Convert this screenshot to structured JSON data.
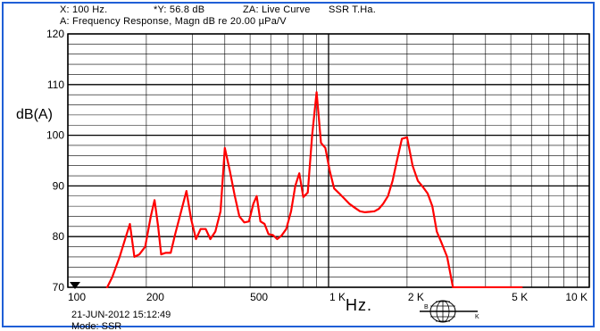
{
  "header": {
    "line1_x": "X: 100 Hz.",
    "line1_y": "*Y: 56.8 dB",
    "line1_za": "ZA: Live Curve",
    "line1_src": "SSR T.Ha.",
    "line2": "A: Frequency Response, Magn dB re 20.00  µPa/V"
  },
  "footer": {
    "date": "21-JUN-2012 15:12:49",
    "mode": "Mode: SSR"
  },
  "logo": {
    "left_letter": "B",
    "right_letter": "K"
  },
  "colors": {
    "frame": "#1f5fd6",
    "curve": "#ff0000",
    "grid": "#000000"
  },
  "chart_data": {
    "type": "line",
    "xscale": "log",
    "xlim": [
      100,
      10000
    ],
    "ylim": [
      70,
      120
    ],
    "xlabel": "Hz.",
    "ylabel": "dB(A)",
    "grid": true,
    "x_ticks": [
      {
        "value": 100,
        "label": "100"
      },
      {
        "value": 200,
        "label": "200"
      },
      {
        "value": 500,
        "label": "500"
      },
      {
        "value": 1000,
        "label": "1 K"
      },
      {
        "value": 2000,
        "label": "2 K"
      },
      {
        "value": 5000,
        "label": "5 K"
      },
      {
        "value": 10000,
        "label": "10 K"
      }
    ],
    "y_ticks": [
      {
        "value": 70,
        "label": "70"
      },
      {
        "value": 80,
        "label": "80"
      },
      {
        "value": 90,
        "label": "90"
      },
      {
        "value": 100,
        "label": "100"
      },
      {
        "value": 110,
        "label": "110"
      },
      {
        "value": 120,
        "label": "120"
      }
    ],
    "series": [
      {
        "color": "#ff0000",
        "x": [
          140,
          148,
          158,
          167,
          173,
          180,
          188,
          198,
          208,
          215,
          222,
          228,
          237,
          248,
          258,
          272,
          285,
          297,
          310,
          323,
          338,
          352,
          368,
          385,
          400,
          418,
          437,
          455,
          475,
          495,
          515,
          530,
          548,
          568,
          588,
          612,
          635,
          660,
          688,
          718,
          745,
          772,
          800,
          832,
          865,
          900,
          935,
          972,
          1010,
          1050,
          1100,
          1150,
          1200,
          1260,
          1320,
          1380,
          1440,
          1500,
          1560,
          1620,
          1690,
          1760,
          1830,
          1910,
          2000,
          2100,
          2200,
          2300,
          2400,
          2500,
          2600,
          2700,
          2850,
          3000,
          3150,
          3300,
          3500,
          3680,
          3860,
          4060,
          4260,
          4460,
          4680,
          4900,
          5100,
          5300,
          5550
        ],
        "y": [
          69.5,
          72,
          76,
          80,
          82.5,
          76,
          76.5,
          78,
          84,
          87.2,
          82,
          76.5,
          76.8,
          76.8,
          80.5,
          85,
          89,
          83.5,
          79.5,
          81.5,
          81.5,
          79.5,
          81,
          85,
          97.5,
          93,
          88,
          84,
          82.8,
          83,
          86.5,
          88,
          83,
          82.5,
          80.5,
          80.3,
          79.5,
          80.2,
          81.5,
          85,
          90,
          92.5,
          87.8,
          88.7,
          100,
          108.5,
          98.5,
          97.5,
          93,
          89.5,
          88.5,
          87.5,
          86.5,
          85.7,
          85,
          84.8,
          84.9,
          85,
          85.5,
          86.5,
          88,
          91,
          95,
          99.3,
          99.6,
          94,
          91,
          89.8,
          88.5,
          86,
          81,
          79,
          76,
          70,
          70,
          70,
          70,
          70,
          70,
          70,
          70,
          70,
          70,
          70,
          70,
          70,
          70
        ]
      }
    ]
  }
}
